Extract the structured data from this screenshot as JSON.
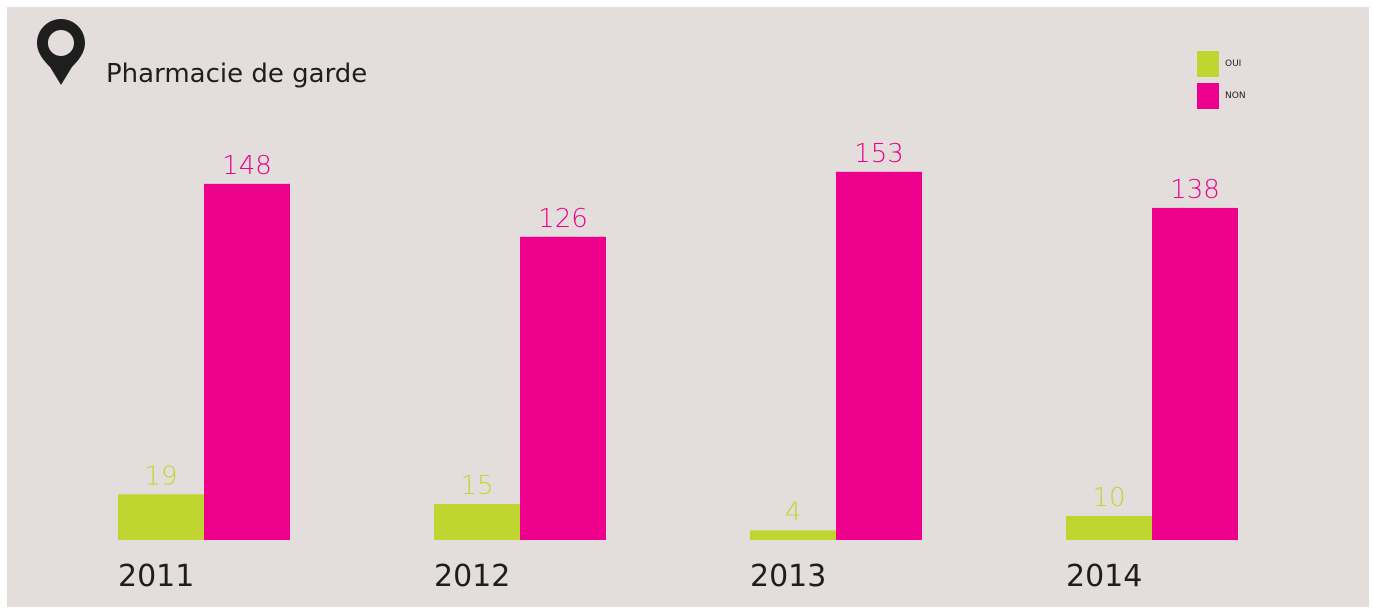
{
  "header": {
    "title": "Pharmacie de garde",
    "icon": "map-pin-icon"
  },
  "colors": {
    "background": "#e3dedb",
    "oui": "#bfd630",
    "non": "#ec008c",
    "text": "#1e1e1e"
  },
  "legend": {
    "placement": "top-right",
    "items": [
      {
        "label": "OUI",
        "color": "#bfd630"
      },
      {
        "label": "NON",
        "color": "#ec008c"
      }
    ]
  },
  "chart_data": {
    "type": "bar",
    "categories": [
      "2011",
      "2012",
      "2013",
      "2014"
    ],
    "series": [
      {
        "name": "OUI",
        "values": [
          19,
          15,
          4,
          10
        ],
        "color": "#bfd630"
      },
      {
        "name": "NON",
        "values": [
          148,
          126,
          153,
          138
        ],
        "color": "#ec008c"
      }
    ],
    "title": "Pharmacie de garde",
    "xlabel": "",
    "ylabel": "",
    "ylim": [
      0,
      155
    ],
    "grid": false,
    "legend_placement": "top-right"
  }
}
